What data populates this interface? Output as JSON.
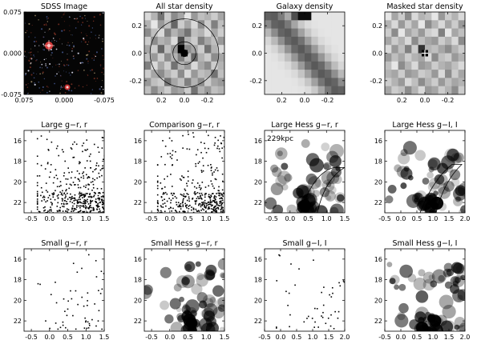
{
  "chart_data": [
    {
      "type": "image",
      "title": "SDSS Image",
      "xlim": [
        0.075,
        -0.075
      ],
      "ylim": [
        -0.075,
        0.075
      ],
      "xticks": [
        "0.075",
        "0.000",
        "-0.075"
      ],
      "yticks": [
        "-0.075",
        "0.000",
        "0.075"
      ]
    },
    {
      "type": "heatmap",
      "title": "All star density",
      "xlim": [
        0.35,
        -0.35
      ],
      "ylim": [
        -0.3,
        0.3
      ],
      "xticks": [
        "0.2",
        "0.0",
        "-0.2"
      ],
      "yticks": [
        "-0.2",
        "0.0",
        "0.2"
      ],
      "grid": [
        12,
        10
      ],
      "circles_radius": [
        0.03,
        0.1,
        0.3
      ],
      "values": [
        [
          0.15,
          0.3,
          0.55,
          0.2,
          0.45,
          0.35,
          0.1,
          0.4,
          0.25,
          0.3,
          0.2,
          0.35
        ],
        [
          0.3,
          0.1,
          0.4,
          0.25,
          0.6,
          0.2,
          0.35,
          0.15,
          0.45,
          0.2,
          0.5,
          0.25
        ],
        [
          0.45,
          0.25,
          0.15,
          0.5,
          0.3,
          0.4,
          0.55,
          0.25,
          0.3,
          0.15,
          0.35,
          0.2
        ],
        [
          0.2,
          0.45,
          0.3,
          0.35,
          0.15,
          0.7,
          0.3,
          0.2,
          0.5,
          0.35,
          0.25,
          0.4
        ],
        [
          0.35,
          0.2,
          0.6,
          0.25,
          0.4,
          1.0,
          0.45,
          0.35,
          0.2,
          0.55,
          0.3,
          0.15
        ],
        [
          0.25,
          0.4,
          0.2,
          0.45,
          0.3,
          0.5,
          0.25,
          0.6,
          0.3,
          0.2,
          0.45,
          0.35
        ],
        [
          0.5,
          0.15,
          0.35,
          0.2,
          0.55,
          0.3,
          0.4,
          0.15,
          0.35,
          0.45,
          0.2,
          0.3
        ],
        [
          0.2,
          0.35,
          0.45,
          0.3,
          0.2,
          0.45,
          0.15,
          0.4,
          0.25,
          0.3,
          0.55,
          0.25
        ],
        [
          0.4,
          0.25,
          0.2,
          0.55,
          0.35,
          0.25,
          0.5,
          0.3,
          0.45,
          0.2,
          0.35,
          0.4
        ],
        [
          0.25,
          0.45,
          0.3,
          0.2,
          0.4,
          0.35,
          0.2,
          0.55,
          0.3,
          0.4,
          0.25,
          0.3
        ]
      ]
    },
    {
      "type": "heatmap",
      "title": "Galaxy density",
      "xlim": [
        0.35,
        -0.35
      ],
      "ylim": [
        -0.3,
        0.3
      ],
      "xticks": [
        "0.2",
        "0.0",
        "-0.2"
      ],
      "yticks": [
        "-0.2",
        "0.0",
        "0.2"
      ],
      "grid": [
        12,
        10
      ],
      "note": "diagonal band of higher density from upper-left to lower-right; peak near top center"
    },
    {
      "type": "heatmap",
      "title": "Masked star density",
      "xlim": [
        0.35,
        -0.35
      ],
      "ylim": [
        -0.3,
        0.3
      ],
      "xticks": [
        "0.2",
        "0.0",
        "-0.2"
      ],
      "yticks": [
        "-0.2",
        "0.0",
        "0.2"
      ],
      "grid": [
        12,
        10
      ],
      "center_marker": "+",
      "values": [
        [
          0.1,
          0.35,
          0.2,
          0.45,
          0.15,
          0.3,
          0.25,
          0.1,
          0.4,
          0.2,
          0.3,
          0.15
        ],
        [
          0.3,
          0.15,
          0.4,
          0.2,
          0.35,
          0.1,
          0.45,
          0.3,
          0.15,
          0.35,
          0.2,
          0.4
        ],
        [
          0.2,
          0.45,
          0.1,
          0.35,
          0.25,
          0.4,
          0.2,
          0.15,
          0.5,
          0.1,
          0.35,
          0.25
        ],
        [
          0.35,
          0.2,
          0.3,
          0.15,
          0.45,
          0.25,
          0.35,
          0.4,
          0.2,
          0.3,
          0.15,
          0.45
        ],
        [
          0.15,
          0.4,
          0.25,
          0.5,
          0.2,
          0.8,
          0.3,
          0.25,
          0.35,
          0.45,
          0.3,
          0.2
        ],
        [
          0.4,
          0.25,
          0.35,
          0.2,
          0.3,
          0.35,
          0.15,
          0.45,
          0.25,
          0.2,
          0.4,
          0.3
        ],
        [
          0.25,
          0.1,
          0.45,
          0.3,
          0.15,
          0.4,
          0.35,
          0.2,
          0.3,
          0.35,
          0.25,
          0.15
        ],
        [
          0.3,
          0.35,
          0.2,
          0.4,
          0.35,
          0.2,
          0.25,
          0.4,
          0.15,
          0.45,
          0.2,
          0.35
        ],
        [
          0.2,
          0.3,
          0.4,
          0.15,
          0.25,
          0.45,
          0.3,
          0.2,
          0.4,
          0.25,
          0.35,
          0.3
        ],
        [
          0.35,
          0.2,
          0.25,
          0.45,
          0.3,
          0.15,
          0.4,
          0.35,
          0.2,
          0.3,
          0.45,
          0.2
        ]
      ]
    },
    {
      "type": "scatter",
      "title": "Large g−r, r",
      "xlim": [
        -0.7,
        1.5
      ],
      "ylim": [
        23,
        15
      ],
      "xticks": [
        "-0.5",
        "0.0",
        "0.5",
        "1.0",
        "1.5"
      ],
      "yticks": [
        "16",
        "18",
        "20",
        "22"
      ],
      "seed": 11,
      "n_points": 430
    },
    {
      "type": "scatter",
      "title": "Comparison g−r, r",
      "xlim": [
        -0.7,
        1.5
      ],
      "ylim": [
        23,
        15
      ],
      "xticks": [
        "-0.5",
        "0.0",
        "0.5",
        "1.0",
        "1.5"
      ],
      "yticks": [
        "16",
        "18",
        "20",
        "22"
      ],
      "seed": 23,
      "n_points": 400
    },
    {
      "type": "heatmap",
      "title": "Large Hess g−r, r",
      "xlim": [
        -0.7,
        1.5
      ],
      "ylim": [
        23,
        15
      ],
      "xticks": [
        "-0.5",
        "0.0",
        "0.5",
        "1.0",
        "1.5"
      ],
      "yticks": [
        "16",
        "18",
        "20",
        "22"
      ],
      "annotation": "229kpc",
      "seed": 37
    },
    {
      "type": "heatmap",
      "title": "Large Hess g−I, I",
      "xlim": [
        -0.5,
        2.0
      ],
      "ylim": [
        23,
        15
      ],
      "xticks": [
        "-0.5",
        "0.0",
        "0.5",
        "1.0",
        "1.5",
        "2.0"
      ],
      "yticks": [
        "16",
        "18",
        "20",
        "22"
      ],
      "seed": 53
    },
    {
      "type": "scatter",
      "title": "Small g−r, r",
      "xlim": [
        -0.7,
        1.5
      ],
      "ylim": [
        23,
        15
      ],
      "xticks": [
        "-0.5",
        "0.0",
        "0.5",
        "1.0",
        "1.5"
      ],
      "yticks": [
        "16",
        "18",
        "20",
        "22"
      ],
      "seed": 61,
      "n_points": 55
    },
    {
      "type": "heatmap",
      "title": "Small Hess g−r, r",
      "xlim": [
        -0.7,
        1.5
      ],
      "ylim": [
        23,
        15
      ],
      "xticks": [
        "-0.5",
        "0.0",
        "0.5",
        "1.0",
        "1.5"
      ],
      "yticks": [
        "16",
        "18",
        "20",
        "22"
      ],
      "seed": 71
    },
    {
      "type": "scatter",
      "title": "Small g−I, I",
      "xlim": [
        -0.5,
        2.0
      ],
      "ylim": [
        23,
        15
      ],
      "xticks": [
        "-0.5",
        "0.0",
        "0.5",
        "1.0",
        "1.5",
        "2.0"
      ],
      "yticks": [
        "16",
        "18",
        "20",
        "22"
      ],
      "seed": 83,
      "n_points": 45
    },
    {
      "type": "heatmap",
      "title": "Small Hess g−I, I",
      "xlim": [
        -0.5,
        2.0
      ],
      "ylim": [
        23,
        15
      ],
      "xticks": [
        "-0.5",
        "0.0",
        "0.5",
        "1.0",
        "1.5",
        "2.0"
      ],
      "yticks": [
        "16",
        "18",
        "20",
        "22"
      ],
      "seed": 97
    }
  ]
}
